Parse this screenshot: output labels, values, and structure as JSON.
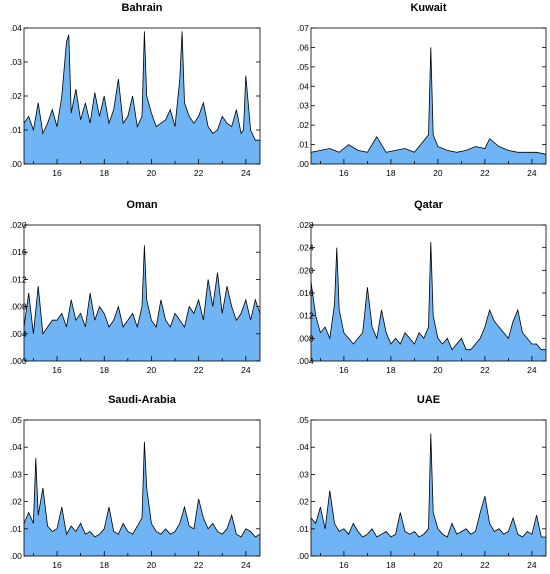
{
  "colors": {
    "fill": "#6fb5f5",
    "line": "#000000",
    "frame": "#000000",
    "background": "#ffffff"
  },
  "chart_data": [
    {
      "type": "area",
      "title": "Bahrain",
      "xlim": [
        14.6,
        24.6
      ],
      "x_ticks": [
        16,
        18,
        20,
        22,
        24
      ],
      "x_tick_labels": [
        "16",
        "18",
        "20",
        "22",
        "24"
      ],
      "ylim": [
        0,
        0.04
      ],
      "y_ticks": [
        0,
        0.01,
        0.02,
        0.03,
        0.04
      ],
      "y_tick_labels": [
        ".00",
        ".01",
        ".02",
        ".03",
        ".04"
      ],
      "grid": false,
      "x": [
        14.6,
        14.8,
        15,
        15.2,
        15.4,
        15.6,
        15.8,
        16,
        16.2,
        16.4,
        16.5,
        16.6,
        16.8,
        17,
        17.2,
        17.4,
        17.6,
        17.8,
        18,
        18.2,
        18.4,
        18.6,
        18.8,
        19,
        19.2,
        19.4,
        19.6,
        19.7,
        19.8,
        20,
        20.2,
        20.4,
        20.6,
        20.8,
        21,
        21.2,
        21.3,
        21.4,
        21.6,
        21.8,
        22,
        22.2,
        22.4,
        22.6,
        22.8,
        23,
        23.2,
        23.4,
        23.6,
        23.8,
        23.9,
        24,
        24.2,
        24.4,
        24.6
      ],
      "values": [
        0.012,
        0.014,
        0.01,
        0.018,
        0.009,
        0.012,
        0.016,
        0.011,
        0.02,
        0.036,
        0.038,
        0.015,
        0.022,
        0.013,
        0.018,
        0.012,
        0.021,
        0.014,
        0.02,
        0.012,
        0.016,
        0.025,
        0.012,
        0.014,
        0.02,
        0.011,
        0.014,
        0.039,
        0.02,
        0.015,
        0.011,
        0.012,
        0.013,
        0.016,
        0.011,
        0.025,
        0.039,
        0.018,
        0.014,
        0.012,
        0.014,
        0.018,
        0.011,
        0.009,
        0.01,
        0.014,
        0.012,
        0.011,
        0.016,
        0.009,
        0.01,
        0.026,
        0.01,
        0.007,
        0.007
      ]
    },
    {
      "type": "area",
      "title": "Kuwait",
      "xlim": [
        14.6,
        24.6
      ],
      "x_ticks": [
        16,
        18,
        20,
        22,
        24
      ],
      "x_tick_labels": [
        "16",
        "18",
        "20",
        "22",
        "24"
      ],
      "ylim": [
        0,
        0.07
      ],
      "y_ticks": [
        0,
        0.01,
        0.02,
        0.03,
        0.04,
        0.05,
        0.06,
        0.07
      ],
      "y_tick_labels": [
        ".00",
        ".01",
        ".02",
        ".03",
        ".04",
        ".05",
        ".06",
        ".07"
      ],
      "grid": false,
      "x": [
        14.6,
        15,
        15.4,
        15.8,
        16.2,
        16.6,
        17,
        17.4,
        17.8,
        18.2,
        18.6,
        19,
        19.4,
        19.6,
        19.7,
        19.8,
        20,
        20.4,
        20.8,
        21.2,
        21.6,
        22,
        22.2,
        22.6,
        23,
        23.4,
        23.8,
        24.2,
        24.6
      ],
      "values": [
        0.006,
        0.007,
        0.008,
        0.006,
        0.01,
        0.007,
        0.006,
        0.014,
        0.006,
        0.007,
        0.008,
        0.006,
        0.012,
        0.015,
        0.06,
        0.015,
        0.009,
        0.007,
        0.006,
        0.007,
        0.009,
        0.008,
        0.013,
        0.009,
        0.007,
        0.006,
        0.006,
        0.006,
        0.005
      ]
    },
    {
      "type": "area",
      "title": "Oman",
      "xlim": [
        14.6,
        24.6
      ],
      "x_ticks": [
        16,
        18,
        20,
        22,
        24
      ],
      "x_tick_labels": [
        "16",
        "18",
        "20",
        "22",
        "24"
      ],
      "ylim": [
        0,
        0.02
      ],
      "y_ticks": [
        0,
        0.004,
        0.008,
        0.012,
        0.016,
        0.02
      ],
      "y_tick_labels": [
        ".000",
        ".004",
        ".008",
        ".012",
        ".016",
        ".020"
      ],
      "grid": false,
      "x": [
        14.6,
        14.8,
        15,
        15.2,
        15.4,
        15.6,
        15.8,
        16,
        16.2,
        16.4,
        16.6,
        16.8,
        17,
        17.2,
        17.4,
        17.6,
        17.8,
        18,
        18.2,
        18.4,
        18.6,
        18.8,
        19,
        19.2,
        19.4,
        19.6,
        19.7,
        19.8,
        20,
        20.2,
        20.4,
        20.6,
        20.8,
        21,
        21.2,
        21.4,
        21.6,
        21.8,
        22,
        22.2,
        22.4,
        22.6,
        22.8,
        23,
        23.2,
        23.4,
        23.6,
        23.8,
        24,
        24.2,
        24.4,
        24.6
      ],
      "values": [
        0.005,
        0.01,
        0.004,
        0.011,
        0.004,
        0.005,
        0.006,
        0.006,
        0.007,
        0.005,
        0.009,
        0.006,
        0.007,
        0.005,
        0.01,
        0.006,
        0.008,
        0.007,
        0.005,
        0.006,
        0.008,
        0.005,
        0.006,
        0.007,
        0.005,
        0.008,
        0.017,
        0.009,
        0.006,
        0.005,
        0.009,
        0.006,
        0.005,
        0.007,
        0.006,
        0.005,
        0.008,
        0.007,
        0.009,
        0.006,
        0.012,
        0.008,
        0.013,
        0.007,
        0.011,
        0.008,
        0.006,
        0.007,
        0.009,
        0.006,
        0.009,
        0.007
      ]
    },
    {
      "type": "area",
      "title": "Qatar",
      "xlim": [
        14.6,
        24.6
      ],
      "x_ticks": [
        16,
        18,
        20,
        22,
        24
      ],
      "x_tick_labels": [
        "16",
        "18",
        "20",
        "22",
        "24"
      ],
      "ylim": [
        0.004,
        0.028
      ],
      "y_ticks": [
        0.004,
        0.008,
        0.012,
        0.016,
        0.02,
        0.024,
        0.028
      ],
      "y_tick_labels": [
        ".004",
        ".008",
        ".012",
        ".016",
        ".020",
        ".024",
        ".028"
      ],
      "grid": false,
      "x": [
        14.6,
        14.8,
        15,
        15.2,
        15.4,
        15.6,
        15.7,
        15.8,
        16,
        16.2,
        16.4,
        16.6,
        16.8,
        17,
        17.2,
        17.4,
        17.6,
        17.8,
        18,
        18.2,
        18.4,
        18.6,
        18.8,
        19,
        19.2,
        19.4,
        19.6,
        19.7,
        19.8,
        20,
        20.2,
        20.4,
        20.6,
        20.8,
        21,
        21.2,
        21.4,
        21.6,
        21.8,
        22,
        22.2,
        22.4,
        22.6,
        22.8,
        23,
        23.2,
        23.4,
        23.6,
        23.8,
        24,
        24.2,
        24.4,
        24.6
      ],
      "values": [
        0.018,
        0.012,
        0.009,
        0.01,
        0.008,
        0.014,
        0.024,
        0.013,
        0.009,
        0.008,
        0.007,
        0.008,
        0.009,
        0.017,
        0.01,
        0.008,
        0.013,
        0.009,
        0.007,
        0.008,
        0.007,
        0.009,
        0.008,
        0.007,
        0.009,
        0.008,
        0.01,
        0.025,
        0.012,
        0.008,
        0.007,
        0.008,
        0.006,
        0.007,
        0.008,
        0.006,
        0.006,
        0.007,
        0.008,
        0.01,
        0.013,
        0.011,
        0.01,
        0.009,
        0.008,
        0.011,
        0.013,
        0.009,
        0.008,
        0.007,
        0.007,
        0.006,
        0.006
      ]
    },
    {
      "type": "area",
      "title": "Saudi-Arabia",
      "xlim": [
        14.6,
        24.6
      ],
      "x_ticks": [
        16,
        18,
        20,
        22,
        24
      ],
      "x_tick_labels": [
        "16",
        "18",
        "20",
        "22",
        "24"
      ],
      "ylim": [
        0,
        0.05
      ],
      "y_ticks": [
        0,
        0.01,
        0.02,
        0.03,
        0.04,
        0.05
      ],
      "y_tick_labels": [
        ".00",
        ".01",
        ".02",
        ".03",
        ".04",
        ".05"
      ],
      "grid": false,
      "x": [
        14.6,
        14.8,
        15,
        15.1,
        15.2,
        15.4,
        15.6,
        15.8,
        16,
        16.2,
        16.4,
        16.6,
        16.8,
        17,
        17.2,
        17.4,
        17.6,
        17.8,
        18,
        18.2,
        18.4,
        18.6,
        18.8,
        19,
        19.2,
        19.4,
        19.6,
        19.7,
        19.8,
        20,
        20.2,
        20.4,
        20.6,
        20.8,
        21,
        21.2,
        21.4,
        21.6,
        21.8,
        22,
        22.2,
        22.4,
        22.6,
        22.8,
        23,
        23.2,
        23.4,
        23.6,
        23.8,
        24,
        24.2,
        24.4,
        24.6
      ],
      "values": [
        0.012,
        0.016,
        0.012,
        0.036,
        0.015,
        0.025,
        0.011,
        0.009,
        0.01,
        0.018,
        0.008,
        0.011,
        0.009,
        0.012,
        0.008,
        0.009,
        0.007,
        0.008,
        0.01,
        0.018,
        0.009,
        0.008,
        0.012,
        0.009,
        0.008,
        0.011,
        0.014,
        0.042,
        0.025,
        0.012,
        0.009,
        0.008,
        0.01,
        0.008,
        0.009,
        0.012,
        0.018,
        0.011,
        0.01,
        0.021,
        0.014,
        0.01,
        0.012,
        0.009,
        0.008,
        0.01,
        0.015,
        0.008,
        0.007,
        0.01,
        0.009,
        0.007,
        0.008
      ]
    },
    {
      "type": "area",
      "title": "UAE",
      "xlim": [
        14.6,
        24.6
      ],
      "x_ticks": [
        16,
        18,
        20,
        22,
        24
      ],
      "x_tick_labels": [
        "16",
        "18",
        "20",
        "22",
        "24"
      ],
      "ylim": [
        0,
        0.05
      ],
      "y_ticks": [
        0,
        0.01,
        0.02,
        0.03,
        0.04,
        0.05
      ],
      "y_tick_labels": [
        ".00",
        ".01",
        ".02",
        ".03",
        ".04",
        ".05"
      ],
      "grid": false,
      "x": [
        14.6,
        14.8,
        15,
        15.2,
        15.4,
        15.6,
        15.8,
        16,
        16.2,
        16.4,
        16.6,
        16.8,
        17,
        17.2,
        17.4,
        17.6,
        17.8,
        18,
        18.2,
        18.4,
        18.6,
        18.8,
        19,
        19.2,
        19.4,
        19.6,
        19.7,
        19.8,
        20,
        20.2,
        20.4,
        20.6,
        20.8,
        21,
        21.2,
        21.4,
        21.6,
        21.8,
        22,
        22.2,
        22.4,
        22.6,
        22.8,
        23,
        23.2,
        23.4,
        23.6,
        23.8,
        24,
        24.2,
        24.4,
        24.6
      ],
      "values": [
        0.014,
        0.012,
        0.018,
        0.01,
        0.024,
        0.012,
        0.009,
        0.01,
        0.008,
        0.012,
        0.009,
        0.007,
        0.008,
        0.01,
        0.007,
        0.008,
        0.009,
        0.007,
        0.008,
        0.016,
        0.009,
        0.008,
        0.009,
        0.007,
        0.008,
        0.01,
        0.045,
        0.016,
        0.01,
        0.008,
        0.007,
        0.012,
        0.008,
        0.009,
        0.01,
        0.008,
        0.009,
        0.016,
        0.022,
        0.012,
        0.009,
        0.01,
        0.008,
        0.009,
        0.014,
        0.008,
        0.007,
        0.009,
        0.008,
        0.015,
        0.007,
        0.007
      ]
    }
  ]
}
